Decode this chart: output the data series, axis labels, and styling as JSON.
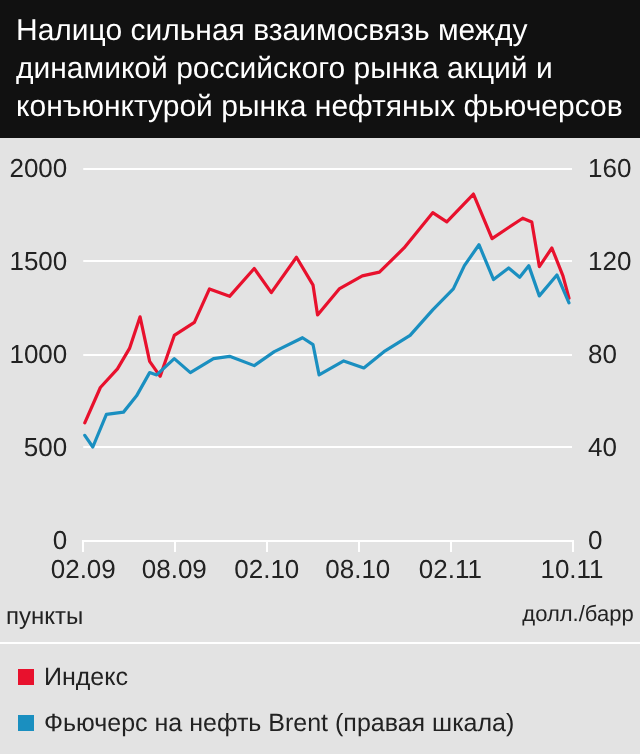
{
  "chart_data": {
    "type": "line",
    "title": "Налицо сильная взаимосвязь между динамикой российского рынка акций и конъюнктурой рынка нефтяных фьючерсов",
    "ylabel": "пункты",
    "y2label": "долл./барр",
    "xlim": [
      "2009-02-01",
      "2011-10-01"
    ],
    "xticks": [
      {
        "value": "2009-02-01",
        "label": "02.09"
      },
      {
        "value": "2009-08-01",
        "label": "08.09"
      },
      {
        "value": "2010-02-01",
        "label": "02.10"
      },
      {
        "value": "2010-08-01",
        "label": "08.10"
      },
      {
        "value": "2011-02-01",
        "label": "02.11"
      },
      {
        "value": "2011-10-01",
        "label": "10.11"
      }
    ],
    "ylim": [
      0,
      2000
    ],
    "yticks": [
      0,
      500,
      1000,
      1500,
      2000
    ],
    "y2lim": [
      0,
      160
    ],
    "y2ticks": [
      0,
      40,
      80,
      120,
      160
    ],
    "grid": "y",
    "legend": "bottom left",
    "marker": "none",
    "line_style": "solid",
    "series": [
      {
        "name": "Индекс",
        "color": "#e8112d",
        "x": [
          "2009-02-04",
          "2009-03-07",
          "2009-04-10",
          "2009-05-04",
          "2009-05-25",
          "2009-06-13",
          "2009-07-04",
          "2009-08-01",
          "2009-09-10",
          "2009-10-10",
          "2009-11-19",
          "2010-01-07",
          "2010-02-10",
          "2010-04-01",
          "2010-05-04",
          "2010-05-13",
          "2010-06-25",
          "2010-08-10",
          "2010-09-13",
          "2010-11-01",
          "2010-12-28",
          "2011-01-25",
          "2011-03-19",
          "2011-04-25",
          "2011-05-28",
          "2011-06-25",
          "2011-07-13",
          "2011-07-28",
          "2011-08-22",
          "2011-09-13",
          "2011-09-25"
        ],
        "values": [
          630,
          820,
          920,
          1030,
          1200,
          960,
          880,
          1100,
          1170,
          1350,
          1310,
          1460,
          1330,
          1520,
          1370,
          1210,
          1350,
          1420,
          1440,
          1570,
          1760,
          1710,
          1860,
          1620,
          1680,
          1730,
          1710,
          1470,
          1570,
          1420,
          1300
        ]
      },
      {
        "name": "Фьючерс на нефть Brent (правая шкала)",
        "color": "#1a8fc0",
        "axis": "y2",
        "x": [
          "2009-02-04",
          "2009-02-20",
          "2009-03-19",
          "2009-04-22",
          "2009-05-18",
          "2009-06-13",
          "2009-06-27",
          "2009-08-01",
          "2009-09-02",
          "2009-10-18",
          "2009-11-19",
          "2010-01-07",
          "2010-02-16",
          "2010-04-13",
          "2010-05-04",
          "2010-05-16",
          "2010-07-04",
          "2010-08-13",
          "2010-09-22",
          "2010-11-13",
          "2010-12-28",
          "2011-02-07",
          "2011-03-01",
          "2011-03-30",
          "2011-04-28",
          "2011-05-28",
          "2011-06-19",
          "2011-07-07",
          "2011-07-28",
          "2011-09-01",
          "2011-09-25"
        ],
        "values": [
          45,
          40,
          54,
          55,
          62,
          72,
          71,
          78,
          72,
          78,
          79,
          75,
          81,
          87,
          84,
          71,
          77,
          74,
          81,
          88,
          99,
          108,
          118,
          127,
          112,
          117,
          113,
          118,
          105,
          114,
          102
        ]
      }
    ]
  }
}
